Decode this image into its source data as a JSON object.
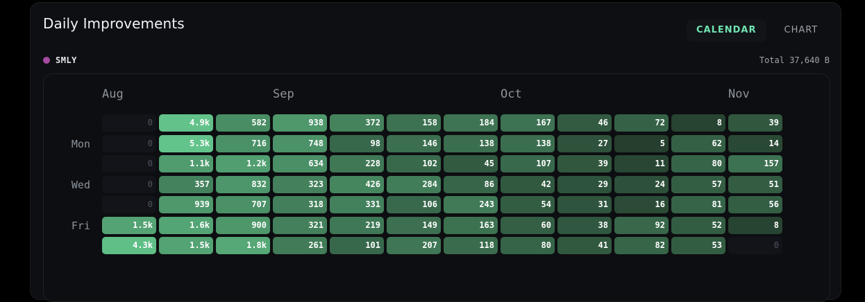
{
  "header": {
    "title": "Daily Improvements"
  },
  "tabs": [
    {
      "label": "CALENDAR",
      "active": true
    },
    {
      "label": "CHART",
      "active": false
    }
  ],
  "legend": {
    "label": "SMLY",
    "color": "#a64aa0"
  },
  "total": "Total 37,640 B",
  "colors": {
    "accent": "#6fe3b0",
    "zero_cell": "#121419",
    "scale_low": "#1f3225",
    "scale_high": "#63c48b"
  },
  "heatmap": {
    "months": [
      {
        "label": "Aug",
        "week_index": 0
      },
      {
        "label": "Sep",
        "week_index": 3
      },
      {
        "label": "Oct",
        "week_index": 7
      },
      {
        "label": "Nov",
        "week_index": 11
      }
    ],
    "day_labels": [
      {
        "label": "Mon",
        "row_index": 1
      },
      {
        "label": "Wed",
        "row_index": 3
      },
      {
        "label": "Fri",
        "row_index": 5
      }
    ],
    "weeks": 12,
    "rows": 7,
    "cells": [
      [
        "0",
        "4.9k",
        "582",
        "938",
        "372",
        "158",
        "184",
        "167",
        "46",
        "72",
        "8",
        "39"
      ],
      [
        "0",
        "5.3k",
        "716",
        "748",
        "98",
        "146",
        "138",
        "138",
        "27",
        "5",
        "62",
        "14"
      ],
      [
        "0",
        "1.1k",
        "1.2k",
        "634",
        "228",
        "102",
        "45",
        "107",
        "39",
        "11",
        "80",
        "157"
      ],
      [
        "0",
        "357",
        "832",
        "323",
        "426",
        "284",
        "86",
        "42",
        "29",
        "24",
        "57",
        "51"
      ],
      [
        "0",
        "939",
        "707",
        "318",
        "331",
        "106",
        "243",
        "54",
        "31",
        "16",
        "81",
        "56"
      ],
      [
        "1.5k",
        "1.6k",
        "900",
        "321",
        "219",
        "149",
        "163",
        "60",
        "38",
        "92",
        "52",
        "8"
      ],
      [
        "4.3k",
        "1.5k",
        "1.8k",
        "261",
        "101",
        "207",
        "118",
        "80",
        "41",
        "82",
        "53",
        "0"
      ]
    ]
  }
}
